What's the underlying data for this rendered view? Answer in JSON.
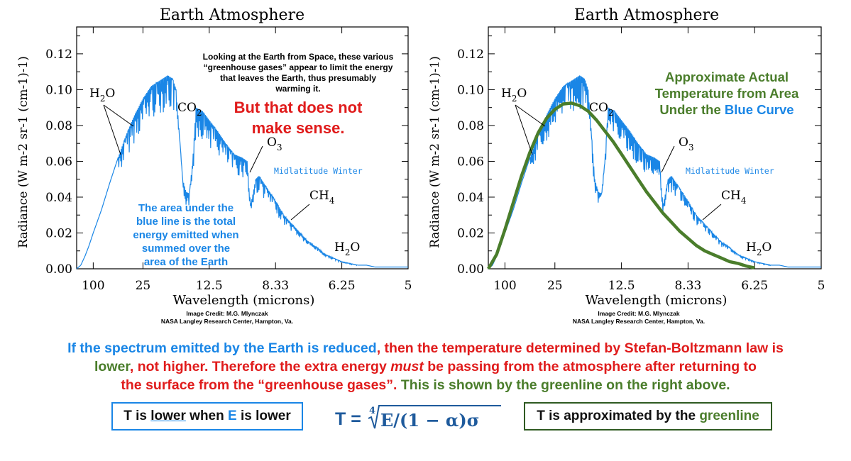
{
  "colors": {
    "spectrum": "#1a86e6",
    "greenline": "#4a7d2b",
    "accent_red": "#e01b1b",
    "formula": "#1e5a9c"
  },
  "chart_data": [
    {
      "type": "line",
      "title": "Earth Atmosphere",
      "xlabel": "Wavelength (microns)",
      "ylabel": "Radiance (W m-2 sr-1 (cm-1)-1)",
      "x_ticks": [
        "100",
        "25",
        "12.5",
        "8.33",
        "6.25",
        "5"
      ],
      "x_tick_wavenumbers": [
        100,
        400,
        800,
        1200,
        1600,
        2000
      ],
      "xlim": [
        0,
        2000
      ],
      "y_ticks": [
        "0.00",
        "0.02",
        "0.04",
        "0.06",
        "0.08",
        "0.10",
        "0.12"
      ],
      "ylim": [
        0,
        0.135
      ],
      "series": [
        {
          "kind": "spectrum",
          "x_wavenumber": [
            0,
            25,
            50,
            75,
            100,
            150,
            200,
            250,
            300,
            350,
            400,
            450,
            500,
            550,
            580,
            600,
            620,
            640,
            660,
            680,
            700,
            720,
            760,
            800,
            850,
            900,
            950,
            1000,
            1030,
            1040,
            1050,
            1060,
            1080,
            1100,
            1150,
            1200,
            1250,
            1300,
            1350,
            1400,
            1450,
            1500,
            1550,
            1600,
            1650,
            1700,
            1750,
            1800,
            1850,
            1900,
            1950,
            2000
          ],
          "y": [
            0.0,
            0.002,
            0.007,
            0.013,
            0.02,
            0.033,
            0.048,
            0.062,
            0.075,
            0.086,
            0.095,
            0.102,
            0.105,
            0.108,
            0.106,
            0.1,
            0.075,
            0.05,
            0.043,
            0.042,
            0.06,
            0.09,
            0.088,
            0.083,
            0.077,
            0.07,
            0.064,
            0.062,
            0.06,
            0.045,
            0.036,
            0.04,
            0.05,
            0.052,
            0.045,
            0.038,
            0.03,
            0.025,
            0.02,
            0.015,
            0.012,
            0.008,
            0.006,
            0.004,
            0.003,
            0.002,
            0.002,
            0.001,
            0.001,
            0.001,
            0.001,
            0.001
          ]
        }
      ],
      "annotations": {
        "h2o_left": "H2O",
        "co2": "CO2",
        "o3": "O3",
        "ch4": "CH4",
        "h2o_right": "H2O",
        "midlatitude": "Midlatitude Winter",
        "top_note": [
          "Looking at the Earth from Space, these various",
          "“greenhouse gases” appear to limit the energy",
          "that leaves the Earth, thus presumably",
          "warming it."
        ],
        "red_note": [
          "But that does not",
          "make sense."
        ],
        "area_note": [
          "The area under the",
          "blue line is the total",
          "energy emitted when",
          "summed over the",
          "area of the Earth"
        ]
      },
      "credit": [
        "Image Credit: M.G. Mlynczak",
        "NASA Langley Research Center, Hampton, Va."
      ]
    },
    {
      "type": "line",
      "title": "Earth Atmosphere",
      "xlabel": "Wavelength (microns)",
      "ylabel": "Radiance (W m-2 sr-1 (cm-1)-1)",
      "x_ticks": [
        "100",
        "25",
        "12.5",
        "8.33",
        "6.25",
        "5"
      ],
      "x_tick_wavenumbers": [
        100,
        400,
        800,
        1200,
        1600,
        2000
      ],
      "xlim": [
        0,
        2000
      ],
      "y_ticks": [
        "0.00",
        "0.02",
        "0.04",
        "0.06",
        "0.08",
        "0.10",
        "0.12"
      ],
      "ylim": [
        0,
        0.135
      ],
      "series": [
        {
          "kind": "spectrum",
          "x_wavenumber": [
            0,
            25,
            50,
            75,
            100,
            150,
            200,
            250,
            300,
            350,
            400,
            450,
            500,
            550,
            580,
            600,
            620,
            640,
            660,
            680,
            700,
            720,
            760,
            800,
            850,
            900,
            950,
            1000,
            1030,
            1040,
            1050,
            1060,
            1080,
            1100,
            1150,
            1200,
            1250,
            1300,
            1350,
            1400,
            1450,
            1500,
            1550,
            1600,
            1650,
            1700,
            1750,
            1800,
            1850,
            1900,
            1950,
            2000
          ],
          "y": [
            0.0,
            0.002,
            0.007,
            0.013,
            0.02,
            0.033,
            0.048,
            0.062,
            0.075,
            0.086,
            0.095,
            0.102,
            0.105,
            0.108,
            0.106,
            0.1,
            0.075,
            0.05,
            0.043,
            0.042,
            0.06,
            0.09,
            0.088,
            0.083,
            0.077,
            0.07,
            0.064,
            0.062,
            0.06,
            0.045,
            0.036,
            0.04,
            0.05,
            0.052,
            0.045,
            0.038,
            0.03,
            0.025,
            0.02,
            0.015,
            0.012,
            0.008,
            0.006,
            0.004,
            0.003,
            0.002,
            0.002,
            0.001,
            0.001,
            0.001,
            0.001,
            0.001
          ]
        },
        {
          "kind": "greenline",
          "x_wavenumber": [
            0,
            50,
            100,
            150,
            200,
            250,
            300,
            350,
            400,
            450,
            500,
            550,
            600,
            650,
            700,
            750,
            800,
            850,
            900,
            950,
            1000,
            1050,
            1100,
            1150,
            1200,
            1250,
            1300,
            1350,
            1400,
            1450,
            1500,
            1550,
            1600
          ],
          "y": [
            0.0,
            0.008,
            0.022,
            0.037,
            0.052,
            0.065,
            0.076,
            0.084,
            0.089,
            0.092,
            0.0925,
            0.091,
            0.088,
            0.083,
            0.077,
            0.071,
            0.064,
            0.057,
            0.05,
            0.043,
            0.037,
            0.031,
            0.026,
            0.021,
            0.017,
            0.013,
            0.01,
            0.008,
            0.006,
            0.004,
            0.003,
            0.0015,
            0.0005
          ]
        }
      ],
      "annotations": {
        "h2o_left": "H2O",
        "co2": "CO2",
        "o3": "O3",
        "ch4": "CH4",
        "h2o_right": "H2O",
        "midlatitude": "Midlatitude Winter",
        "green_note_lines": [
          [
            "Approximate Actual",
            ""
          ],
          [
            "Temperature from Area",
            ""
          ],
          [
            "Under the ",
            "Blue Curve"
          ]
        ]
      },
      "credit": [
        "Image Credit: M.G. Mlynczak",
        "NASA Langley Research Center, Hampton, Va."
      ]
    }
  ],
  "caption": {
    "l1_blue": "If the spectrum emitted by the Earth is reduced",
    "l1_red": ", then the temperature determined by Stefan-Boltzmann law is",
    "l2_green": "lower",
    "l2_red": ", not higher. Therefore the extra energy ",
    "l2_em": "must",
    "l2_red2": " be passing from the atmosphere after returning to",
    "l3_red": "the surface from the “greenhouse gases”.",
    "l3_green": " This is shown by the greenline on the right above."
  },
  "box_left": {
    "t1": "T is ",
    "lower": "lower",
    "t2": " when ",
    "E": "E",
    "t3": " is lower"
  },
  "formula": {
    "lhs": "T = ",
    "root_index": "4",
    "radicand": "E/(1 − α)σ"
  },
  "box_right": {
    "t1": "T is approximated by the ",
    "green": "greenline"
  }
}
